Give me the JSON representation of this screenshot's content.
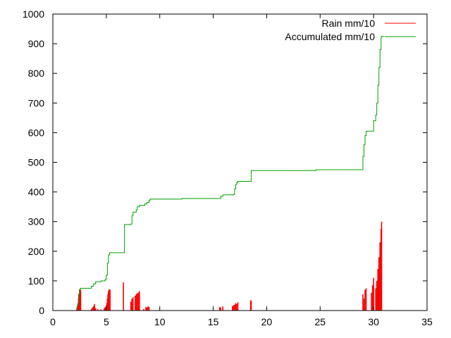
{
  "chart_data": {
    "type": "line",
    "xlim": [
      0,
      35
    ],
    "ylim": [
      0,
      1000
    ],
    "x_ticks": [
      0,
      5,
      10,
      15,
      20,
      25,
      30,
      35
    ],
    "y_ticks": [
      0,
      100,
      200,
      300,
      400,
      500,
      600,
      700,
      800,
      900,
      1000
    ],
    "grid": false,
    "legend_position": "top-right",
    "series": [
      {
        "name": "Rain mm/10",
        "style": "impulses",
        "color": "#ff0000",
        "points": [
          [
            2.25,
            10
          ],
          [
            2.3,
            15
          ],
          [
            2.35,
            25
          ],
          [
            2.4,
            40
          ],
          [
            2.45,
            55
          ],
          [
            2.5,
            70
          ],
          [
            2.55,
            72
          ],
          [
            2.6,
            68
          ],
          [
            3.6,
            5
          ],
          [
            3.7,
            10
          ],
          [
            3.8,
            15
          ],
          [
            3.9,
            22
          ],
          [
            4.0,
            8
          ],
          [
            4.2,
            5
          ],
          [
            4.5,
            4
          ],
          [
            4.8,
            8
          ],
          [
            4.9,
            12
          ],
          [
            5.0,
            18
          ],
          [
            5.05,
            25
          ],
          [
            5.1,
            40
          ],
          [
            5.15,
            55
          ],
          [
            5.2,
            65
          ],
          [
            5.25,
            70
          ],
          [
            5.3,
            72
          ],
          [
            5.35,
            70
          ],
          [
            6.6,
            95
          ],
          [
            7.3,
            30
          ],
          [
            7.4,
            40
          ],
          [
            7.5,
            45
          ],
          [
            7.7,
            50
          ],
          [
            7.8,
            55
          ],
          [
            7.9,
            58
          ],
          [
            8.0,
            60
          ],
          [
            8.1,
            65
          ],
          [
            8.5,
            5
          ],
          [
            8.7,
            12
          ],
          [
            8.8,
            10
          ],
          [
            8.9,
            14
          ],
          [
            9.0,
            12
          ],
          [
            15.6,
            12
          ],
          [
            15.7,
            10
          ],
          [
            15.9,
            14
          ],
          [
            16.8,
            15
          ],
          [
            16.9,
            18
          ],
          [
            17.0,
            20
          ],
          [
            17.1,
            25
          ],
          [
            17.2,
            22
          ],
          [
            17.3,
            28
          ],
          [
            18.5,
            35
          ],
          [
            18.55,
            32
          ],
          [
            29.0,
            55
          ],
          [
            29.1,
            40
          ],
          [
            29.2,
            70
          ],
          [
            29.3,
            75
          ],
          [
            29.8,
            60
          ],
          [
            29.9,
            85
          ],
          [
            30.0,
            110
          ],
          [
            30.2,
            75
          ],
          [
            30.3,
            100
          ],
          [
            30.4,
            140
          ],
          [
            30.5,
            180
          ],
          [
            30.6,
            230
          ],
          [
            30.7,
            275
          ],
          [
            30.75,
            300
          ]
        ]
      },
      {
        "name": "Accumulated mm/10",
        "style": "steps",
        "color": "#00a000",
        "points": [
          [
            2.2,
            0
          ],
          [
            2.3,
            20
          ],
          [
            2.4,
            55
          ],
          [
            2.5,
            72
          ],
          [
            2.6,
            75
          ],
          [
            3.5,
            75
          ],
          [
            3.6,
            82
          ],
          [
            3.8,
            90
          ],
          [
            4.0,
            97
          ],
          [
            4.5,
            100
          ],
          [
            4.9,
            105
          ],
          [
            5.0,
            120
          ],
          [
            5.1,
            160
          ],
          [
            5.2,
            188
          ],
          [
            5.3,
            195
          ],
          [
            6.6,
            195
          ],
          [
            6.7,
            290
          ],
          [
            7.3,
            292
          ],
          [
            7.4,
            320
          ],
          [
            7.5,
            332
          ],
          [
            7.8,
            340
          ],
          [
            7.9,
            350
          ],
          [
            8.1,
            355
          ],
          [
            8.6,
            360
          ],
          [
            8.8,
            365
          ],
          [
            9.0,
            372
          ],
          [
            9.1,
            376
          ],
          [
            12.0,
            376
          ],
          [
            12.1,
            378
          ],
          [
            15.6,
            378
          ],
          [
            15.7,
            385
          ],
          [
            15.9,
            390
          ],
          [
            16.9,
            392
          ],
          [
            17.0,
            410
          ],
          [
            17.1,
            425
          ],
          [
            17.2,
            432
          ],
          [
            17.3,
            436
          ],
          [
            18.5,
            436
          ],
          [
            18.55,
            472
          ],
          [
            24.5,
            472
          ],
          [
            24.6,
            475
          ],
          [
            28.9,
            475
          ],
          [
            29.0,
            520
          ],
          [
            29.1,
            560
          ],
          [
            29.2,
            590
          ],
          [
            29.3,
            605
          ],
          [
            29.9,
            605
          ],
          [
            30.0,
            640
          ],
          [
            30.2,
            660
          ],
          [
            30.3,
            700
          ],
          [
            30.4,
            760
          ],
          [
            30.5,
            820
          ],
          [
            30.6,
            880
          ],
          [
            30.7,
            922
          ],
          [
            30.75,
            925
          ],
          [
            31.0,
            925
          ]
        ]
      }
    ]
  }
}
